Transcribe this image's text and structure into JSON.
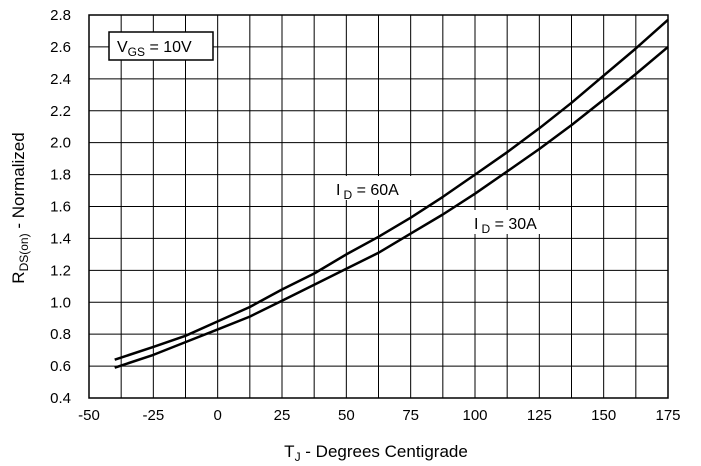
{
  "chart_data": {
    "type": "line",
    "xlabel": {
      "main": "T",
      "sub": "J",
      "rest": " - Degrees Centigrade"
    },
    "ylabel": {
      "main": "R",
      "sub": "DS(on)",
      "rest": " - Normalized"
    },
    "xlim": [
      -50,
      175
    ],
    "ylim": [
      0.4,
      2.8
    ],
    "xticks": [
      "-50",
      "-25",
      "0",
      "25",
      "50",
      "75",
      "100",
      "125",
      "150",
      "175"
    ],
    "yticks": [
      "0.4",
      "0.6",
      "0.8",
      "1.0",
      "1.2",
      "1.4",
      "1.6",
      "1.8",
      "2.0",
      "2.2",
      "2.4",
      "2.6",
      "2.8"
    ],
    "x_minor_step": 12.5,
    "y_minor_step": 0.2,
    "grid": true,
    "legend_box": {
      "main": "V",
      "sub": "GS",
      "rest": " = 10V"
    },
    "series": [
      {
        "label": {
          "main": "I",
          "sub": "D",
          "rest": " = 60A"
        },
        "x": [
          -40,
          -25,
          -12.5,
          0,
          12.5,
          25,
          37.5,
          50,
          62.5,
          75,
          87.5,
          100,
          112.5,
          125,
          137.5,
          150,
          162.5,
          175
        ],
        "values": [
          0.64,
          0.72,
          0.79,
          0.88,
          0.97,
          1.08,
          1.18,
          1.3,
          1.41,
          1.53,
          1.66,
          1.8,
          1.94,
          2.09,
          2.25,
          2.42,
          2.59,
          2.77
        ]
      },
      {
        "label": {
          "main": "I",
          "sub": "D",
          "rest": " = 30A"
        },
        "x": [
          -40,
          -25,
          -12.5,
          0,
          12.5,
          25,
          37.5,
          50,
          62.5,
          75,
          87.5,
          100,
          112.5,
          125,
          137.5,
          150,
          162.5,
          175
        ],
        "values": [
          0.59,
          0.67,
          0.75,
          0.83,
          0.91,
          1.01,
          1.11,
          1.21,
          1.31,
          1.43,
          1.55,
          1.68,
          1.82,
          1.96,
          2.11,
          2.27,
          2.43,
          2.6
        ]
      }
    ]
  }
}
